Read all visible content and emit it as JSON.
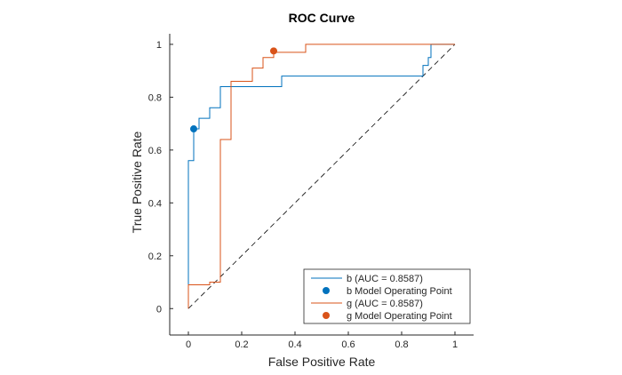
{
  "chart_data": {
    "type": "line",
    "title": "ROC Curve",
    "xlabel": "False Positive Rate",
    "ylabel": "True Positive Rate",
    "xlim": [
      -0.07,
      1.07
    ],
    "ylim": [
      -0.1,
      1.04
    ],
    "xticks": [
      0,
      0.2,
      0.4,
      0.6,
      0.8,
      1
    ],
    "xtick_labels": [
      "0",
      "0.2",
      "0.4",
      "0.6",
      "0.8",
      "1"
    ],
    "yticks": [
      0,
      0.2,
      0.4,
      0.6,
      0.8,
      1
    ],
    "ytick_labels": [
      "0",
      "0.2",
      "0.4",
      "0.6",
      "0.8",
      "1"
    ],
    "grid": false,
    "legend_position": "bottom-right",
    "series": [
      {
        "name": "b (AUC = 0.8587)",
        "color": "#0072BD",
        "x": [
          0,
          0,
          0.02,
          0.02,
          0.04,
          0.04,
          0.08,
          0.08,
          0.12,
          0.12,
          0.35,
          0.35,
          0.87,
          0.88,
          0.88,
          0.9,
          0.9,
          0.91,
          0.91,
          1
        ],
        "y": [
          0,
          0.56,
          0.56,
          0.68,
          0.68,
          0.72,
          0.72,
          0.76,
          0.76,
          0.84,
          0.84,
          0.88,
          0.88,
          0.88,
          0.92,
          0.92,
          0.95,
          0.95,
          1,
          1
        ]
      },
      {
        "name": "g (AUC = 0.8587)",
        "color": "#D95319",
        "x": [
          0,
          0,
          0.08,
          0.08,
          0.12,
          0.12,
          0.16,
          0.16,
          0.24,
          0.24,
          0.28,
          0.28,
          0.32,
          0.32,
          0.44,
          0.44,
          1
        ],
        "y": [
          0,
          0.09,
          0.09,
          0.1,
          0.1,
          0.64,
          0.64,
          0.86,
          0.86,
          0.91,
          0.91,
          0.95,
          0.95,
          0.97,
          0.97,
          1,
          1
        ]
      }
    ],
    "operating_points": [
      {
        "name": "b Model Operating Point",
        "color": "#0072BD",
        "x": 0.02,
        "y": 0.68
      },
      {
        "name": "g Model Operating Point",
        "color": "#D95319",
        "x": 0.32,
        "y": 0.975
      }
    ],
    "reference_line": {
      "x": [
        0,
        1
      ],
      "y": [
        0,
        1
      ],
      "style": "dashed",
      "color": "#000000"
    }
  }
}
